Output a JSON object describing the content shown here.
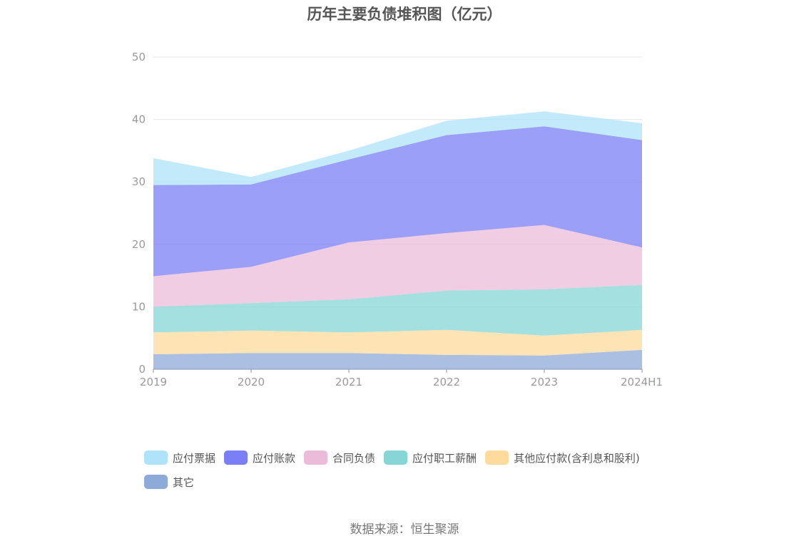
{
  "chart_data": {
    "type": "area",
    "stacked": true,
    "title": "历年主要负债堆积图（亿元）",
    "categories": [
      "2019",
      "2020",
      "2021",
      "2022",
      "2023",
      "2024H1"
    ],
    "ylim": [
      0,
      50
    ],
    "yticks": [
      0,
      10,
      20,
      30,
      40,
      50
    ],
    "grid": true,
    "legend_position": "bottom",
    "series": [
      {
        "name": "应付票据",
        "color": "#aee3fa",
        "values": [
          4.3,
          1.2,
          1.4,
          2.3,
          2.4,
          2.7
        ]
      },
      {
        "name": "应付账款",
        "color": "#7b7ff5",
        "values": [
          14.6,
          13.2,
          13.3,
          15.7,
          15.8,
          17.2
        ]
      },
      {
        "name": "合同负债",
        "color": "#ebbcda",
        "values": [
          4.9,
          5.8,
          9.1,
          9.2,
          10.3,
          6.0
        ]
      },
      {
        "name": "应付职工薪酬",
        "color": "#86d6d6",
        "values": [
          4.1,
          4.4,
          5.3,
          6.3,
          7.4,
          7.2
        ]
      },
      {
        "name": "其他应付款(含利息和股利)",
        "color": "#fedb9c",
        "values": [
          3.5,
          3.6,
          3.3,
          4.0,
          3.2,
          3.2
        ]
      },
      {
        "name": "其它",
        "color": "#8eaad8",
        "values": [
          2.4,
          2.6,
          2.6,
          2.3,
          2.2,
          3.1
        ]
      }
    ]
  },
  "source": "数据来源：恒生聚源"
}
